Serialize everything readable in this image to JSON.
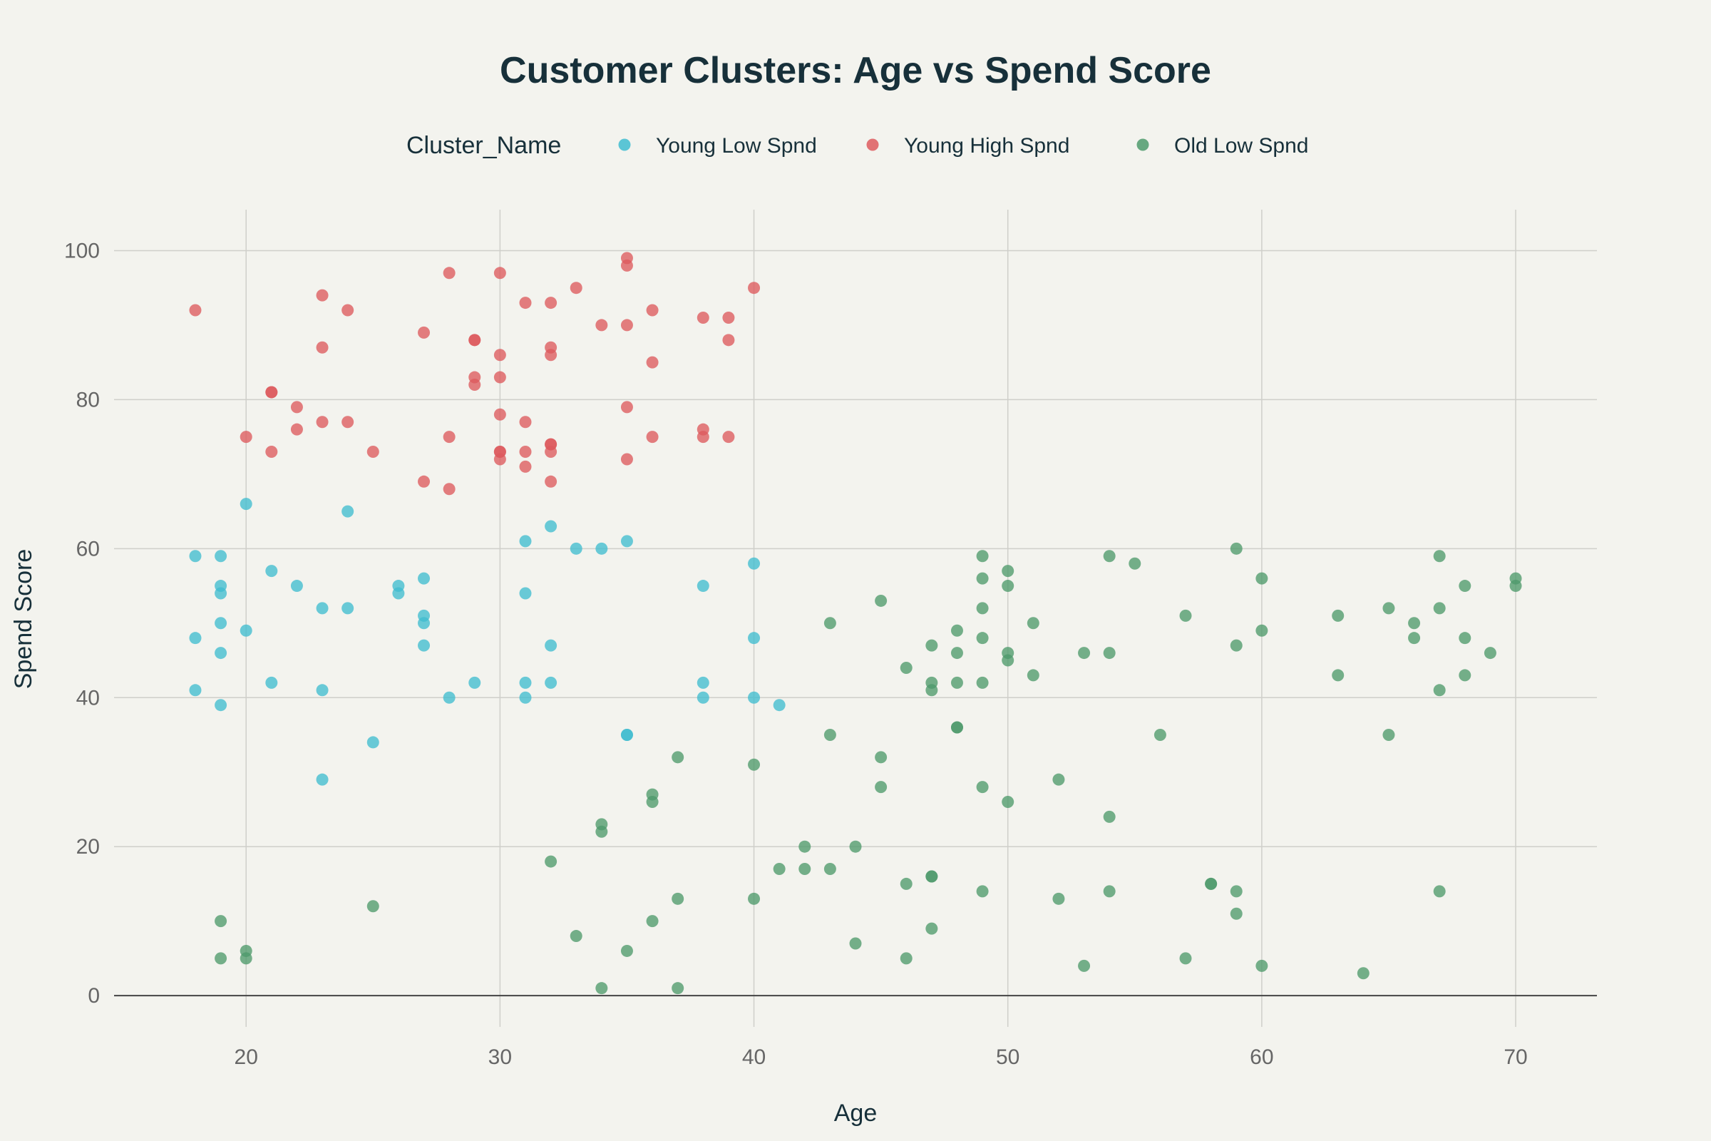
{
  "colors": {
    "background": "#f3f3ee",
    "grid": "#cfcfca",
    "zeroline": "#444444",
    "text": "#17303a",
    "tick": "#666666"
  },
  "chart_data": {
    "type": "scatter",
    "title": "Customer Clusters: Age vs Spend Score",
    "xlabel": "Age",
    "ylabel": "Spend Score",
    "xlim": [
      14.8,
      73.2
    ],
    "ylim": [
      -4.2,
      105.5
    ],
    "x_ticks": [
      20,
      30,
      40,
      50,
      60,
      70
    ],
    "y_ticks": [
      0,
      20,
      40,
      60,
      80,
      100
    ],
    "grid": true,
    "legend": {
      "title": "Cluster_Name",
      "placement": "top-center"
    },
    "series": [
      {
        "name": "Young Low Spnd",
        "color": "#40bcd0",
        "points": [
          [
            18,
            59
          ],
          [
            18,
            48
          ],
          [
            18,
            41
          ],
          [
            19,
            59
          ],
          [
            19,
            55
          ],
          [
            19,
            54
          ],
          [
            19,
            50
          ],
          [
            19,
            46
          ],
          [
            19,
            39
          ],
          [
            20,
            66
          ],
          [
            20,
            49
          ],
          [
            21,
            57
          ],
          [
            21,
            42
          ],
          [
            22,
            55
          ],
          [
            23,
            52
          ],
          [
            23,
            41
          ],
          [
            23,
            29
          ],
          [
            24,
            65
          ],
          [
            24,
            52
          ],
          [
            25,
            34
          ],
          [
            26,
            55
          ],
          [
            26,
            54
          ],
          [
            27,
            56
          ],
          [
            27,
            51
          ],
          [
            27,
            50
          ],
          [
            27,
            47
          ],
          [
            28,
            40
          ],
          [
            29,
            42
          ],
          [
            31,
            61
          ],
          [
            31,
            54
          ],
          [
            31,
            42
          ],
          [
            31,
            40
          ],
          [
            32,
            63
          ],
          [
            32,
            47
          ],
          [
            32,
            42
          ],
          [
            33,
            60
          ],
          [
            34,
            60
          ],
          [
            35,
            61
          ],
          [
            35,
            35
          ],
          [
            35,
            35
          ],
          [
            38,
            55
          ],
          [
            38,
            42
          ],
          [
            38,
            40
          ],
          [
            40,
            58
          ],
          [
            40,
            48
          ],
          [
            40,
            40
          ],
          [
            41,
            39
          ]
        ]
      },
      {
        "name": "Young High Spnd",
        "color": "#dd5a5e",
        "points": [
          [
            18,
            92
          ],
          [
            20,
            75
          ],
          [
            21,
            81
          ],
          [
            21,
            81
          ],
          [
            21,
            73
          ],
          [
            22,
            79
          ],
          [
            22,
            76
          ],
          [
            23,
            94
          ],
          [
            23,
            87
          ],
          [
            23,
            77
          ],
          [
            24,
            92
          ],
          [
            24,
            77
          ],
          [
            25,
            73
          ],
          [
            27,
            89
          ],
          [
            27,
            69
          ],
          [
            28,
            97
          ],
          [
            28,
            75
          ],
          [
            28,
            68
          ],
          [
            29,
            88
          ],
          [
            29,
            88
          ],
          [
            29,
            83
          ],
          [
            29,
            82
          ],
          [
            30,
            97
          ],
          [
            30,
            86
          ],
          [
            30,
            83
          ],
          [
            30,
            78
          ],
          [
            30,
            73
          ],
          [
            30,
            73
          ],
          [
            30,
            72
          ],
          [
            31,
            93
          ],
          [
            31,
            77
          ],
          [
            31,
            73
          ],
          [
            31,
            71
          ],
          [
            32,
            93
          ],
          [
            32,
            87
          ],
          [
            32,
            86
          ],
          [
            32,
            74
          ],
          [
            32,
            74
          ],
          [
            32,
            73
          ],
          [
            32,
            69
          ],
          [
            33,
            95
          ],
          [
            34,
            90
          ],
          [
            35,
            99
          ],
          [
            35,
            98
          ],
          [
            35,
            90
          ],
          [
            35,
            79
          ],
          [
            35,
            72
          ],
          [
            36,
            92
          ],
          [
            36,
            85
          ],
          [
            36,
            75
          ],
          [
            38,
            91
          ],
          [
            38,
            76
          ],
          [
            38,
            75
          ],
          [
            39,
            91
          ],
          [
            39,
            88
          ],
          [
            39,
            75
          ],
          [
            40,
            95
          ]
        ]
      },
      {
        "name": "Old Low Spnd",
        "color": "#4e9a6c",
        "points": [
          [
            19,
            10
          ],
          [
            19,
            5
          ],
          [
            20,
            6
          ],
          [
            20,
            5
          ],
          [
            25,
            12
          ],
          [
            32,
            18
          ],
          [
            33,
            8
          ],
          [
            34,
            23
          ],
          [
            34,
            22
          ],
          [
            34,
            1
          ],
          [
            35,
            6
          ],
          [
            36,
            27
          ],
          [
            36,
            26
          ],
          [
            36,
            10
          ],
          [
            37,
            32
          ],
          [
            37,
            13
          ],
          [
            37,
            1
          ],
          [
            40,
            31
          ],
          [
            40,
            13
          ],
          [
            41,
            17
          ],
          [
            42,
            20
          ],
          [
            42,
            17
          ],
          [
            43,
            50
          ],
          [
            43,
            35
          ],
          [
            43,
            17
          ],
          [
            44,
            20
          ],
          [
            44,
            7
          ],
          [
            45,
            53
          ],
          [
            45,
            32
          ],
          [
            45,
            28
          ],
          [
            46,
            44
          ],
          [
            46,
            15
          ],
          [
            46,
            5
          ],
          [
            47,
            47
          ],
          [
            47,
            42
          ],
          [
            47,
            41
          ],
          [
            47,
            16
          ],
          [
            47,
            16
          ],
          [
            47,
            9
          ],
          [
            48,
            49
          ],
          [
            48,
            46
          ],
          [
            48,
            42
          ],
          [
            48,
            36
          ],
          [
            48,
            36
          ],
          [
            49,
            59
          ],
          [
            49,
            56
          ],
          [
            49,
            52
          ],
          [
            49,
            48
          ],
          [
            49,
            42
          ],
          [
            49,
            28
          ],
          [
            49,
            14
          ],
          [
            50,
            57
          ],
          [
            50,
            55
          ],
          [
            50,
            46
          ],
          [
            50,
            45
          ],
          [
            50,
            26
          ],
          [
            51,
            50
          ],
          [
            51,
            43
          ],
          [
            52,
            29
          ],
          [
            52,
            13
          ],
          [
            53,
            46
          ],
          [
            53,
            4
          ],
          [
            54,
            59
          ],
          [
            54,
            46
          ],
          [
            54,
            24
          ],
          [
            54,
            14
          ],
          [
            55,
            58
          ],
          [
            56,
            35
          ],
          [
            57,
            51
          ],
          [
            57,
            5
          ],
          [
            58,
            15
          ],
          [
            58,
            15
          ],
          [
            59,
            60
          ],
          [
            59,
            47
          ],
          [
            59,
            14
          ],
          [
            59,
            11
          ],
          [
            60,
            56
          ],
          [
            60,
            49
          ],
          [
            60,
            4
          ],
          [
            63,
            51
          ],
          [
            63,
            43
          ],
          [
            64,
            3
          ],
          [
            65,
            52
          ],
          [
            65,
            35
          ],
          [
            66,
            50
          ],
          [
            66,
            48
          ],
          [
            67,
            59
          ],
          [
            67,
            52
          ],
          [
            67,
            41
          ],
          [
            67,
            14
          ],
          [
            68,
            55
          ],
          [
            68,
            48
          ],
          [
            68,
            43
          ],
          [
            69,
            46
          ],
          [
            70,
            56
          ],
          [
            70,
            55
          ]
        ]
      }
    ]
  }
}
